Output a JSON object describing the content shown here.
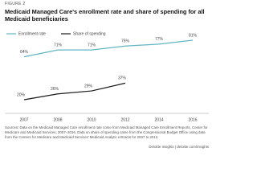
{
  "figure_label": "FIGURE 2",
  "chart_data": {
    "type": "line",
    "title": "Medicaid Managed Care's enrollment rate and share of spending for all Medicaid beneficiaries",
    "categories": [
      "2007",
      "2008",
      "2010",
      "2012",
      "2014",
      "2016"
    ],
    "series": [
      {
        "name": "Enrollment rate",
        "color": "#62b5c5",
        "values": [
          64,
          71,
          71,
          75,
          77,
          81
        ],
        "value_labels": [
          "64%",
          "71%",
          "71%",
          "75%",
          "77%",
          "81%"
        ]
      },
      {
        "name": "Share of spending",
        "color": "#1a1a1a",
        "values": [
          20,
          26,
          29,
          37,
          null,
          null
        ],
        "value_labels": [
          "20%",
          "26%",
          "29%",
          "37%",
          null,
          null
        ]
      }
    ],
    "legend": "top-left"
  },
  "source": "Sources: Data on the Medicaid Managed Care enrollment rate come from Medicaid Managed Care Enrollment Reports, Center for Medicare and Medicaid Services, 2007–2016. Data on share of spending came from the Congressional Budget Office using data from the Centers for Medicare and Medicaid Services' Medicaid Analytic eXtracts for 2007 to 2012.",
  "footer": "Deloitte Insights | deloitte.com/insights"
}
